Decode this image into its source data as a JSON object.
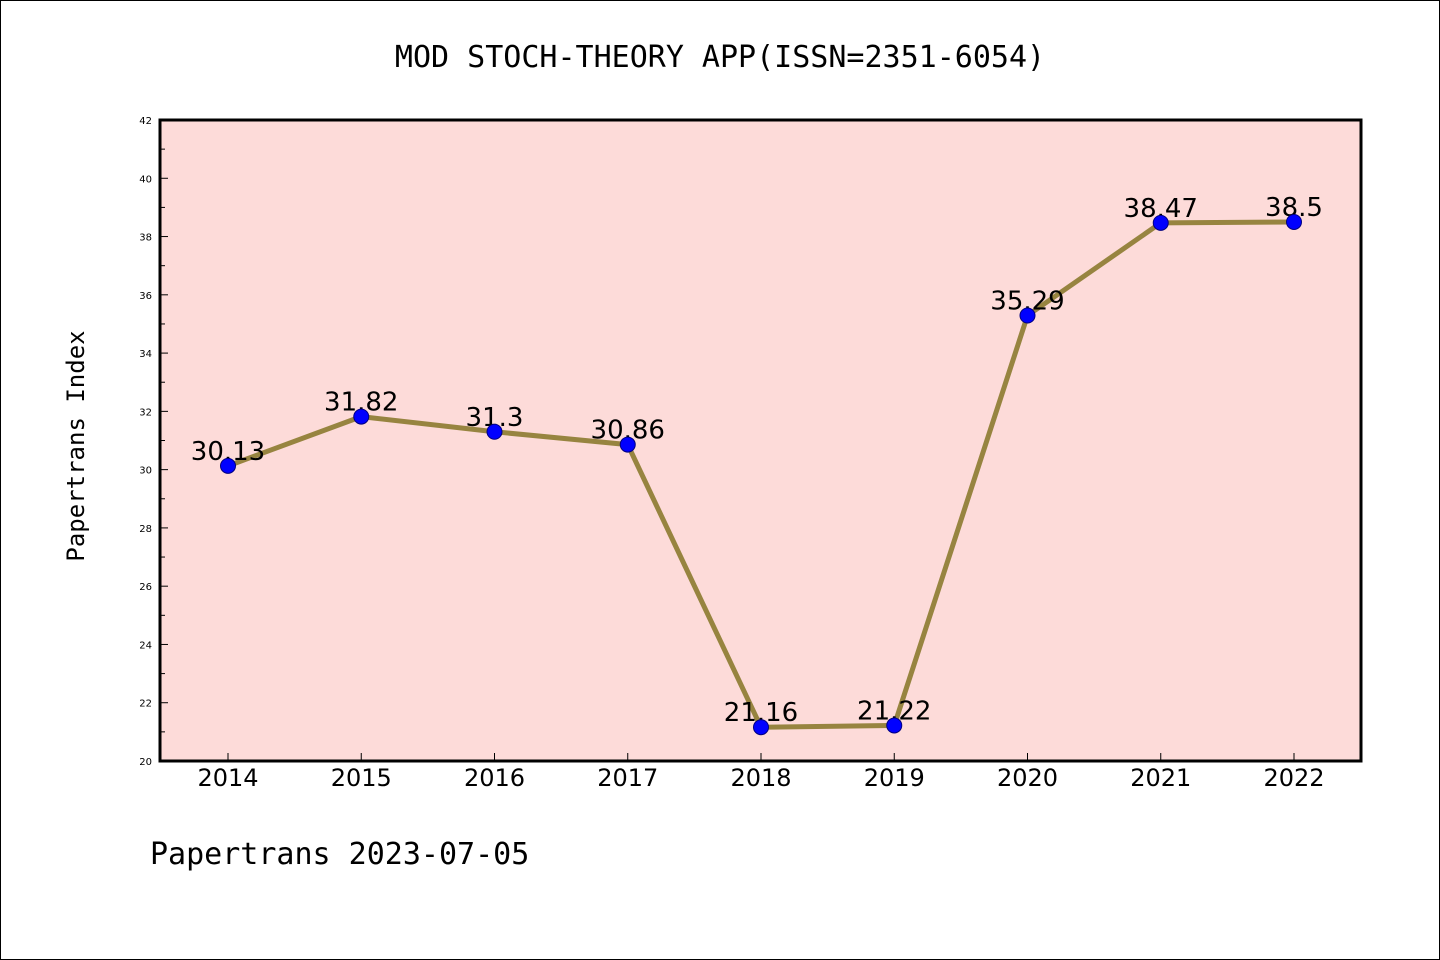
{
  "chart_data": {
    "type": "line",
    "title": "MOD STOCH-THEORY APP(ISSN=2351-6054)",
    "xlabel": "",
    "ylabel": "Papertrans Index",
    "footer": "Papertrans 2023-07-05",
    "categories": [
      "2014",
      "2015",
      "2016",
      "2017",
      "2018",
      "2019",
      "2020",
      "2021",
      "2022"
    ],
    "values": [
      30.13,
      31.82,
      31.3,
      30.86,
      21.16,
      21.22,
      35.29,
      38.47,
      38.5
    ],
    "value_labels": [
      "30.13",
      "31.82",
      "31.3",
      "30.86",
      "21.16",
      "21.22",
      "35.29",
      "38.47",
      "38.5"
    ],
    "ylim": [
      20,
      42
    ],
    "yticks": [
      "20",
      "22",
      "24",
      "26",
      "28",
      "30",
      "32",
      "34",
      "36",
      "38",
      "40",
      "42"
    ],
    "grid": false,
    "colors": {
      "plot_background": "#fddbd9",
      "line": "#978440",
      "marker": "#0000ff",
      "marker_edge": "#000080"
    }
  }
}
